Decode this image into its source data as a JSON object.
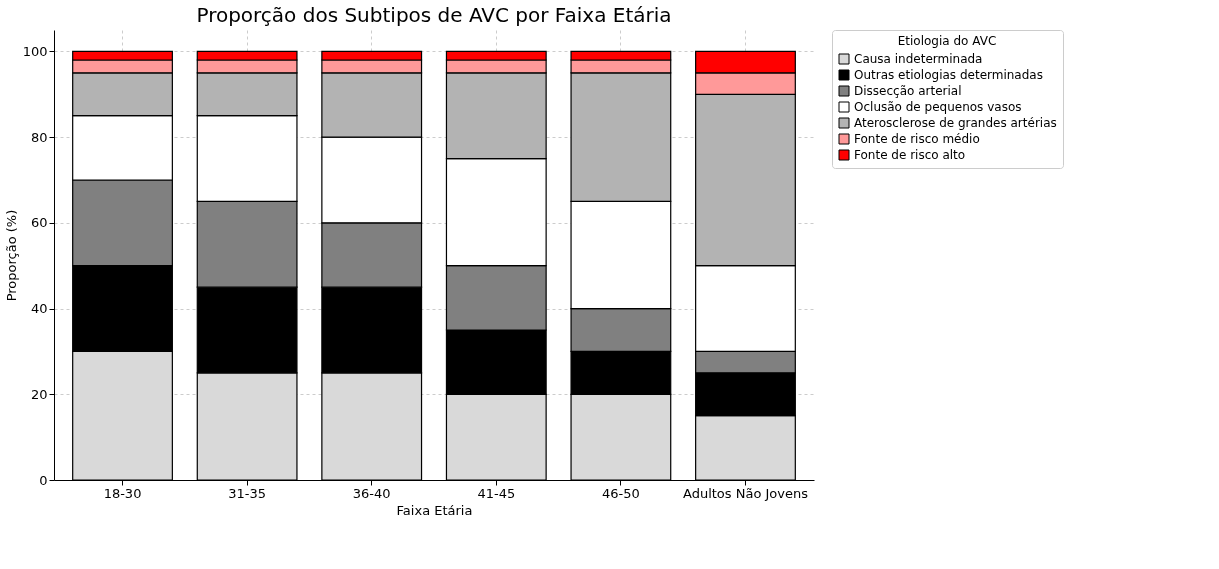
{
  "chart_data": {
    "type": "bar",
    "stacked": true,
    "title": "Proporção dos Subtipos de AVC por Faixa Etária",
    "xlabel": "Faixa Etária",
    "ylabel": "Proporção (%)",
    "legend_title": "Etiologia do AVC",
    "legend": "top right",
    "grid": true,
    "categories": [
      "18-30",
      "31-35",
      "36-40",
      "41-45",
      "46-50",
      "Adultos Não Jovens"
    ],
    "ylim": [
      0,
      105
    ],
    "yticks": [
      0,
      20,
      40,
      60,
      80,
      100
    ],
    "series": [
      {
        "name": "Causa indeterminada",
        "color": "#d9d9d9",
        "values": [
          30,
          25,
          25,
          20,
          20,
          15
        ]
      },
      {
        "name": "Outras etiologias determinadas",
        "color": "#000000",
        "values": [
          20,
          20,
          20,
          15,
          10,
          10
        ]
      },
      {
        "name": "Dissecção arterial",
        "color": "#808080",
        "values": [
          20,
          20,
          15,
          15,
          10,
          5
        ]
      },
      {
        "name": "Oclusão de pequenos vasos",
        "color": "#ffffff",
        "values": [
          15,
          20,
          20,
          25,
          25,
          20
        ]
      },
      {
        "name": "Aterosclerose de grandes artérias",
        "color": "#b3b3b3",
        "values": [
          10,
          10,
          15,
          20,
          30,
          40
        ]
      },
      {
        "name": "Fonte de risco médio",
        "color": "#ff9999",
        "values": [
          3,
          3,
          3,
          3,
          3,
          5
        ]
      },
      {
        "name": "Fonte de risco alto",
        "color": "#ff0000",
        "values": [
          2,
          2,
          2,
          2,
          2,
          5
        ]
      }
    ]
  }
}
